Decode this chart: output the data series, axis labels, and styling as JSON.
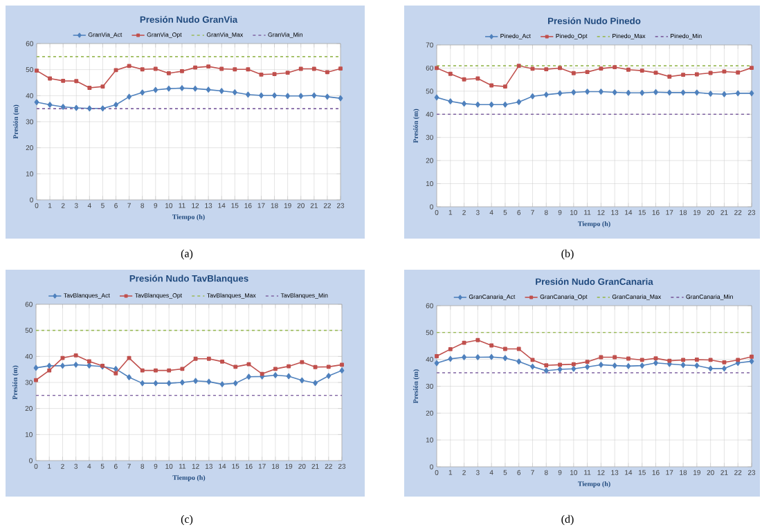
{
  "chart_data": [
    {
      "type": "line",
      "title": "Presión Nudo GranVia",
      "xlabel": "Tiempo (h)",
      "ylabel": "Presión (m)",
      "annotations": [
        "(a)"
      ],
      "x": [
        0,
        1,
        2,
        3,
        4,
        5,
        6,
        7,
        8,
        9,
        10,
        11,
        12,
        13,
        14,
        15,
        16,
        17,
        18,
        19,
        20,
        21,
        22,
        23
      ],
      "xlim": [
        0,
        23
      ],
      "xticks": [
        0,
        1,
        2,
        3,
        4,
        5,
        6,
        7,
        8,
        9,
        10,
        11,
        12,
        13,
        14,
        15,
        16,
        17,
        18,
        19,
        20,
        21,
        22,
        23
      ],
      "ylim": [
        0,
        60
      ],
      "yticks": [
        0,
        10,
        20,
        30,
        40,
        50,
        60
      ],
      "grid": true,
      "legend": "top",
      "series": [
        {
          "name": "GranVia_Act",
          "color": "#4f81bd",
          "marker": "diamond",
          "line_style": "solid",
          "values": [
            37.5,
            36.5,
            35.7,
            35.3,
            35.1,
            35.1,
            36.5,
            39.6,
            41.2,
            42.2,
            42.7,
            42.9,
            42.7,
            42.3,
            41.8,
            41.3,
            40.4,
            40.1,
            40.1,
            39.9,
            39.9,
            40.1,
            39.6,
            39.0
          ]
        },
        {
          "name": "GranVia_Opt",
          "color": "#c0504d",
          "marker": "square",
          "line_style": "solid",
          "values": [
            49.6,
            46.6,
            45.7,
            45.6,
            43.0,
            43.5,
            49.8,
            51.4,
            50.1,
            50.3,
            48.6,
            49.4,
            50.8,
            51.2,
            50.3,
            50.1,
            50.1,
            48.1,
            48.3,
            48.8,
            50.3,
            50.3,
            49.0,
            50.4
          ]
        },
        {
          "name": "GranVia_Max",
          "color": "#9bbb59",
          "marker": "none",
          "line_style": "dashed",
          "values": [
            55,
            55,
            55,
            55,
            55,
            55,
            55,
            55,
            55,
            55,
            55,
            55,
            55,
            55,
            55,
            55,
            55,
            55,
            55,
            55,
            55,
            55,
            55,
            55
          ]
        },
        {
          "name": "GranVia_Min",
          "color": "#8064a2",
          "marker": "none",
          "line_style": "dashed",
          "values": [
            35,
            35,
            35,
            35,
            35,
            35,
            35,
            35,
            35,
            35,
            35,
            35,
            35,
            35,
            35,
            35,
            35,
            35,
            35,
            35,
            35,
            35,
            35,
            35
          ]
        }
      ]
    },
    {
      "type": "line",
      "title": "Presión Nudo Pinedo",
      "xlabel": "Tiempo (h)",
      "ylabel": "Presión (m)",
      "annotations": [
        "(b)"
      ],
      "x": [
        0,
        1,
        2,
        3,
        4,
        5,
        6,
        7,
        8,
        9,
        10,
        11,
        12,
        13,
        14,
        15,
        16,
        17,
        18,
        19,
        20,
        21,
        22,
        23
      ],
      "xlim": [
        0,
        23
      ],
      "xticks": [
        0,
        1,
        2,
        3,
        4,
        5,
        6,
        7,
        8,
        9,
        10,
        11,
        12,
        13,
        14,
        15,
        16,
        17,
        18,
        19,
        20,
        21,
        22,
        23
      ],
      "ylim": [
        0,
        70
      ],
      "yticks": [
        0,
        10,
        20,
        30,
        40,
        50,
        60,
        70
      ],
      "grid": true,
      "legend": "top",
      "series": [
        {
          "name": "Pinedo_Act",
          "color": "#4f81bd",
          "marker": "diamond",
          "line_style": "solid",
          "values": [
            47.3,
            45.6,
            44.6,
            44.2,
            44.2,
            44.2,
            45.3,
            47.8,
            48.5,
            49.1,
            49.5,
            49.8,
            49.8,
            49.5,
            49.3,
            49.3,
            49.6,
            49.4,
            49.4,
            49.4,
            48.9,
            48.7,
            49.1,
            49.1
          ]
        },
        {
          "name": "Pinedo_Opt",
          "color": "#c0504d",
          "marker": "square",
          "line_style": "solid",
          "values": [
            60.0,
            57.5,
            55.1,
            55.5,
            52.5,
            52.0,
            61.0,
            59.7,
            59.5,
            60.0,
            57.8,
            58.3,
            59.8,
            60.4,
            59.3,
            58.9,
            58.0,
            56.3,
            57.1,
            57.3,
            57.9,
            58.5,
            58.1,
            60.1
          ]
        },
        {
          "name": "Pinedo_Max",
          "color": "#9bbb59",
          "marker": "none",
          "line_style": "dashed",
          "values": [
            61,
            61,
            61,
            61,
            61,
            61,
            61,
            61,
            61,
            61,
            61,
            61,
            61,
            61,
            61,
            61,
            61,
            61,
            61,
            61,
            61,
            61,
            61,
            61
          ]
        },
        {
          "name": "Pinedo_Min",
          "color": "#8064a2",
          "marker": "none",
          "line_style": "dashed",
          "values": [
            40,
            40,
            40,
            40,
            40,
            40,
            40,
            40,
            40,
            40,
            40,
            40,
            40,
            40,
            40,
            40,
            40,
            40,
            40,
            40,
            40,
            40,
            40,
            40
          ]
        }
      ]
    },
    {
      "type": "line",
      "title": "Presión Nudo TavBlanques",
      "xlabel": "Tiempo (h)",
      "ylabel": "Presión (m)",
      "annotations": [
        "(c)"
      ],
      "x": [
        0,
        1,
        2,
        3,
        4,
        5,
        6,
        7,
        8,
        9,
        10,
        11,
        12,
        13,
        14,
        15,
        16,
        17,
        18,
        19,
        20,
        21,
        22,
        23
      ],
      "xlim": [
        0,
        23
      ],
      "xticks": [
        0,
        1,
        2,
        3,
        4,
        5,
        6,
        7,
        8,
        9,
        10,
        11,
        12,
        13,
        14,
        15,
        16,
        17,
        18,
        19,
        20,
        21,
        22,
        23
      ],
      "ylim": [
        0,
        60
      ],
      "yticks": [
        0,
        10,
        20,
        30,
        40,
        50,
        60
      ],
      "grid": true,
      "legend": "top",
      "series": [
        {
          "name": "TavBlanques_Act",
          "color": "#4f81bd",
          "marker": "diamond",
          "line_style": "solid",
          "values": [
            35.6,
            36.4,
            36.4,
            36.8,
            36.5,
            36.1,
            35.2,
            32.0,
            29.7,
            29.7,
            29.7,
            30.0,
            30.6,
            30.3,
            29.3,
            29.7,
            32.2,
            32.3,
            32.8,
            32.4,
            30.8,
            29.8,
            32.5,
            34.6
          ]
        },
        {
          "name": "TavBlanques_Opt",
          "color": "#c0504d",
          "marker": "square",
          "line_style": "solid",
          "values": [
            30.9,
            34.6,
            39.4,
            40.4,
            38.1,
            36.4,
            33.5,
            39.4,
            34.6,
            34.6,
            34.6,
            35.2,
            39.1,
            39.1,
            38.0,
            36.0,
            37.0,
            33.3,
            35.2,
            36.2,
            37.8,
            35.9,
            36.0,
            36.8
          ]
        },
        {
          "name": "TavBlanques_Max",
          "color": "#9bbb59",
          "marker": "none",
          "line_style": "dashed",
          "values": [
            50,
            50,
            50,
            50,
            50,
            50,
            50,
            50,
            50,
            50,
            50,
            50,
            50,
            50,
            50,
            50,
            50,
            50,
            50,
            50,
            50,
            50,
            50,
            50
          ]
        },
        {
          "name": "TavBlanques_Min",
          "color": "#8064a2",
          "marker": "none",
          "line_style": "dashed",
          "values": [
            25,
            25,
            25,
            25,
            25,
            25,
            25,
            25,
            25,
            25,
            25,
            25,
            25,
            25,
            25,
            25,
            25,
            25,
            25,
            25,
            25,
            25,
            25,
            25
          ]
        }
      ]
    },
    {
      "type": "line",
      "title": "Presión Nudo GranCanaria",
      "xlabel": "Tiempo (h)",
      "ylabel": "Presión (m)",
      "annotations": [
        "(d)"
      ],
      "x": [
        0,
        1,
        2,
        3,
        4,
        5,
        6,
        7,
        8,
        9,
        10,
        11,
        12,
        13,
        14,
        15,
        16,
        17,
        18,
        19,
        20,
        21,
        22,
        23
      ],
      "xlim": [
        0,
        23
      ],
      "xticks": [
        0,
        1,
        2,
        3,
        4,
        5,
        6,
        7,
        8,
        9,
        10,
        11,
        12,
        13,
        14,
        15,
        16,
        17,
        18,
        19,
        20,
        21,
        22,
        23
      ],
      "ylim": [
        0,
        60
      ],
      "yticks": [
        0,
        10,
        20,
        30,
        40,
        50,
        60
      ],
      "grid": true,
      "legend": "top",
      "series": [
        {
          "name": "GranCanaria_Act",
          "color": "#4f81bd",
          "marker": "diamond",
          "line_style": "solid",
          "values": [
            38.6,
            40.2,
            40.8,
            40.8,
            40.9,
            40.5,
            39.2,
            37.3,
            35.8,
            36.3,
            36.5,
            37.2,
            38.0,
            37.7,
            37.5,
            37.7,
            38.7,
            38.3,
            37.9,
            37.7,
            36.6,
            36.6,
            38.7,
            39.3
          ]
        },
        {
          "name": "GranCanaria_Opt",
          "color": "#c0504d",
          "marker": "square",
          "line_style": "solid",
          "values": [
            41.2,
            43.8,
            46.2,
            47.2,
            45.2,
            43.9,
            43.9,
            39.8,
            37.8,
            38.0,
            38.2,
            39.1,
            40.8,
            40.8,
            40.3,
            39.8,
            40.4,
            39.5,
            39.8,
            39.9,
            39.8,
            38.9,
            39.8,
            41.0
          ]
        },
        {
          "name": "GranCanaria_Max",
          "color": "#9bbb59",
          "marker": "none",
          "line_style": "dashed",
          "values": [
            50,
            50,
            50,
            50,
            50,
            50,
            50,
            50,
            50,
            50,
            50,
            50,
            50,
            50,
            50,
            50,
            50,
            50,
            50,
            50,
            50,
            50,
            50,
            50
          ]
        },
        {
          "name": "GranCanaria_Min",
          "color": "#8064a2",
          "marker": "none",
          "line_style": "dashed",
          "values": [
            35,
            35,
            35,
            35,
            35,
            35,
            35,
            35,
            35,
            35,
            35,
            35,
            35,
            35,
            35,
            35,
            35,
            35,
            35,
            35,
            35,
            35,
            35,
            35
          ]
        }
      ]
    }
  ]
}
